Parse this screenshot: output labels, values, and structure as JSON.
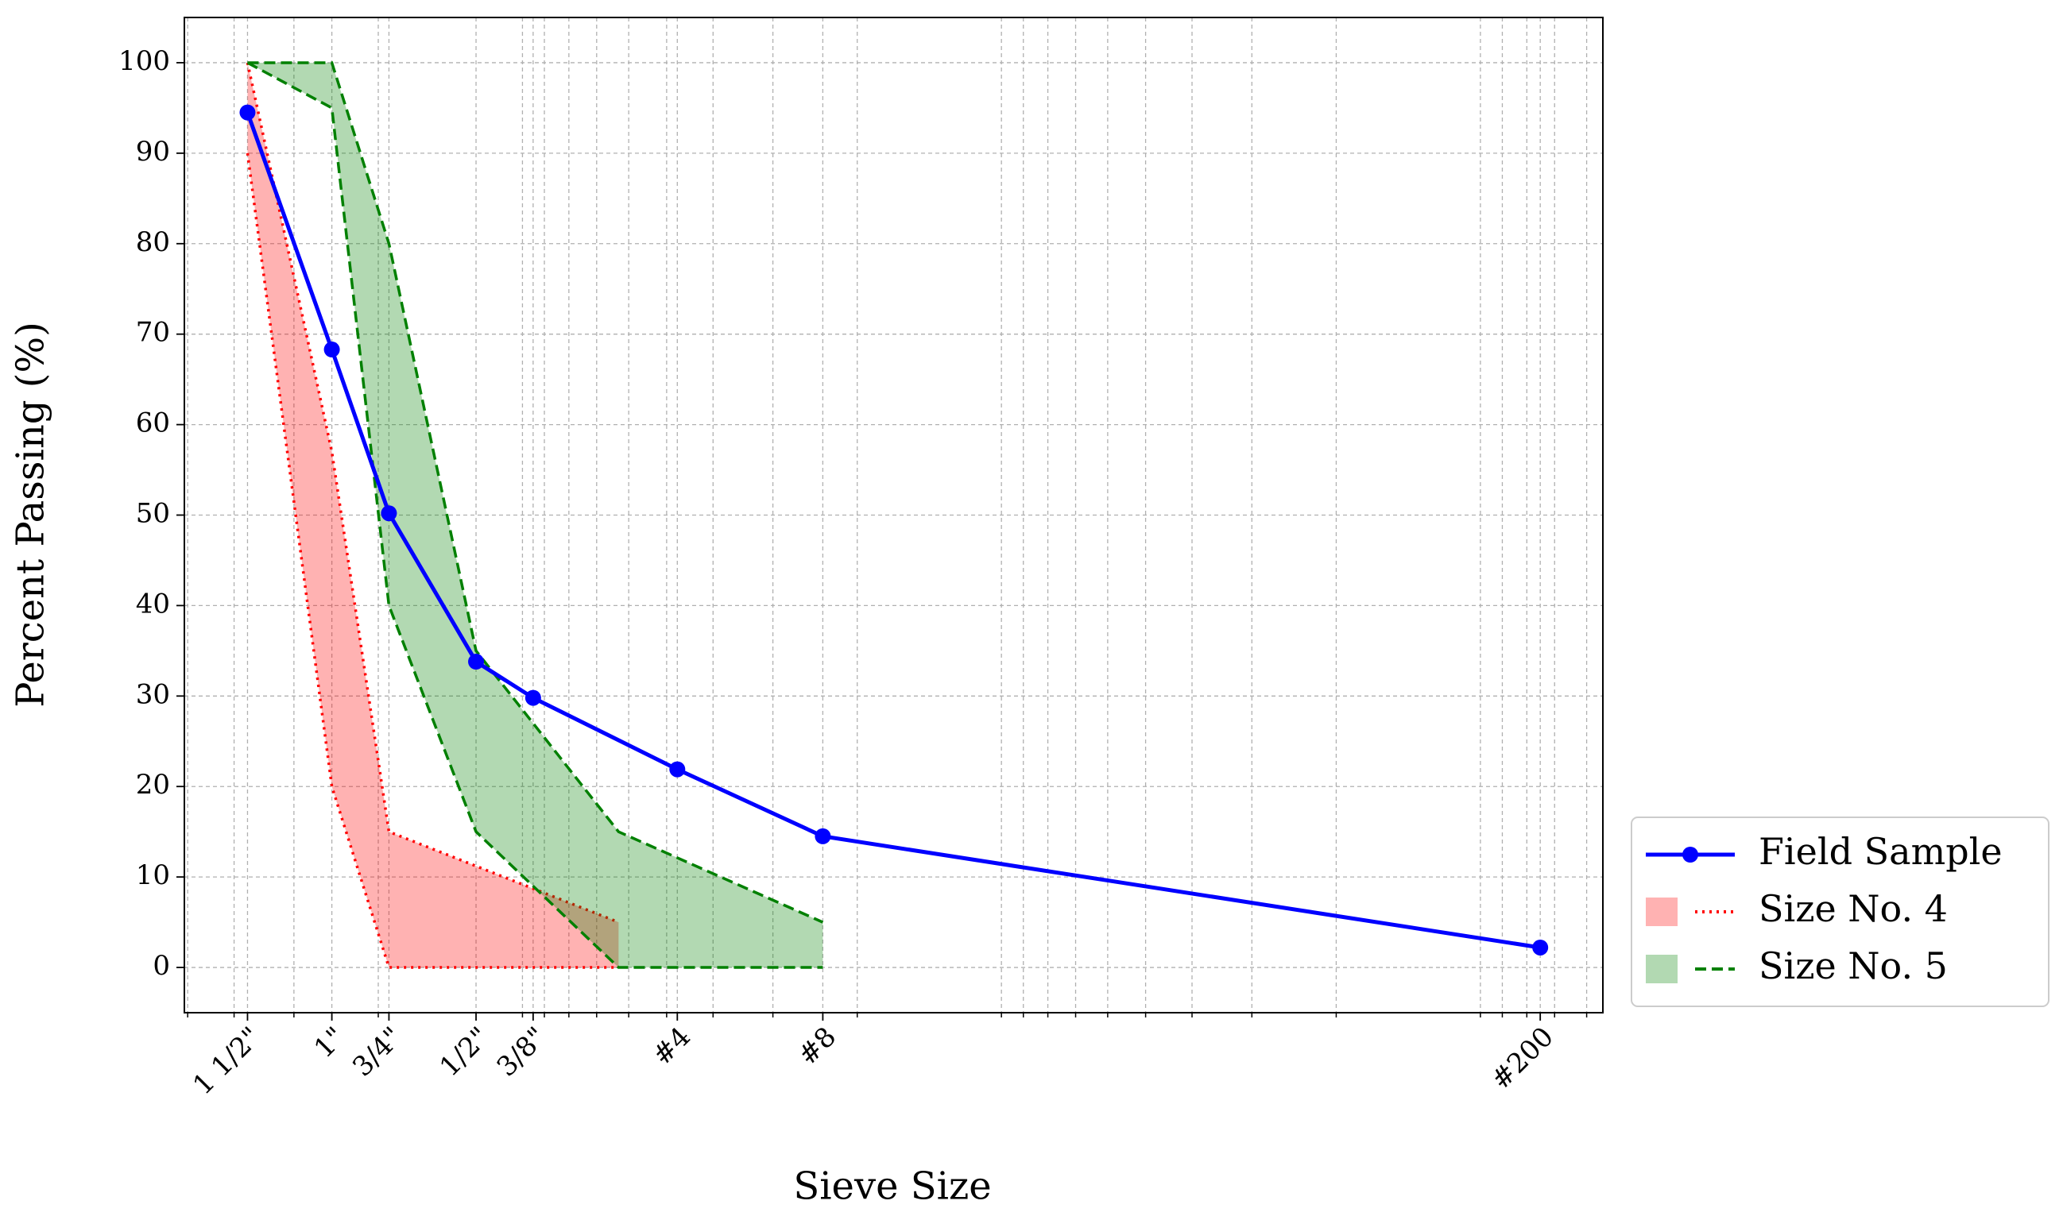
{
  "chart_data": {
    "type": "gradation",
    "x_label": "Sieve Size",
    "y_label": "Percent Passing (%)",
    "x_scale": "log",
    "x_reversed": true,
    "xlim": [
      50.8,
      0.0555
    ],
    "ylim": [
      -5,
      105
    ],
    "xticks": [
      {
        "value": 37.5,
        "label": "1 1/2\""
      },
      {
        "value": 25,
        "label": "1\""
      },
      {
        "value": 19,
        "label": "3/4\""
      },
      {
        "value": 12.5,
        "label": "1/2\""
      },
      {
        "value": 9.5,
        "label": "3/8\""
      },
      {
        "value": 4.75,
        "label": "#4"
      },
      {
        "value": 2.36,
        "label": "#8"
      },
      {
        "value": 0.075,
        "label": "#200"
      }
    ],
    "xminorticks": [
      50,
      40,
      30,
      20,
      10,
      9,
      8,
      7,
      6,
      5,
      4,
      3,
      2,
      1,
      0.9,
      0.8,
      0.7,
      0.6,
      0.5,
      0.4,
      0.3,
      0.2,
      0.1,
      0.09,
      0.08,
      0.07,
      0.06
    ],
    "yticks": [
      0,
      10,
      20,
      30,
      40,
      50,
      60,
      70,
      80,
      90,
      100
    ],
    "grid": true,
    "legend_loc": "outside-lower-right",
    "series": [
      {
        "name": "Field Sample",
        "kind": "line",
        "color": "#0000ff",
        "x": [
          37.5,
          25,
          19,
          12.5,
          9.5,
          4.75,
          2.36,
          0.075
        ],
        "values": [
          94.5,
          68.3,
          50.2,
          33.8,
          29.8,
          21.9,
          14.5,
          2.2
        ]
      },
      {
        "name": "Size No. 4",
        "kind": "band",
        "color": "#ff0000",
        "linestyle": "dotted",
        "x": [
          37.5,
          25,
          19,
          6.3
        ],
        "upper": [
          100,
          57,
          15,
          5
        ],
        "lower": [
          90,
          20,
          0,
          0
        ]
      },
      {
        "name": "Size No. 5",
        "kind": "band",
        "color": "#008000",
        "linestyle": "dashed",
        "x": [
          37.5,
          25,
          19,
          12.5,
          6.3,
          2.36
        ],
        "upper": [
          100,
          100,
          80,
          35,
          15,
          5
        ],
        "lower": [
          100,
          95,
          40,
          15,
          0,
          0
        ]
      }
    ]
  }
}
